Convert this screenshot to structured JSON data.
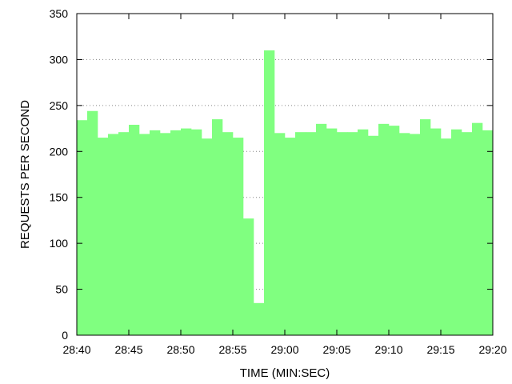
{
  "chart_data": {
    "type": "bar",
    "title": "",
    "xlabel": "TIME (MIN:SEC)",
    "ylabel": "REQUESTS PER SECOND",
    "ylim": [
      0,
      350
    ],
    "yticks": [
      0,
      50,
      100,
      150,
      200,
      250,
      300,
      350
    ],
    "xlim_seconds": [
      0,
      40
    ],
    "xticks": [
      "28:40",
      "28:45",
      "28:50",
      "28:55",
      "29:00",
      "29:05",
      "29:10",
      "29:15",
      "29:20"
    ],
    "grid": "horizontal dotted",
    "bar_color": "#80ff80",
    "x": [
      "28:40",
      "28:41",
      "28:42",
      "28:43",
      "28:44",
      "28:45",
      "28:46",
      "28:47",
      "28:48",
      "28:49",
      "28:50",
      "28:51",
      "28:52",
      "28:53",
      "28:54",
      "28:55",
      "28:56",
      "28:57",
      "28:58",
      "28:59",
      "29:00",
      "29:01",
      "29:02",
      "29:03",
      "29:04",
      "29:05",
      "29:06",
      "29:07",
      "29:08",
      "29:09",
      "29:10",
      "29:11",
      "29:12",
      "29:13",
      "29:14",
      "29:15",
      "29:16",
      "29:17",
      "29:18",
      "29:19"
    ],
    "values": [
      234,
      244,
      215,
      219,
      221,
      229,
      219,
      223,
      220,
      223,
      225,
      224,
      214,
      235,
      221,
      215,
      127,
      35,
      310,
      220,
      215,
      221,
      221,
      230,
      225,
      221,
      221,
      224,
      217,
      230,
      228,
      220,
      219,
      235,
      225,
      214,
      224,
      221,
      231,
      223
    ]
  }
}
